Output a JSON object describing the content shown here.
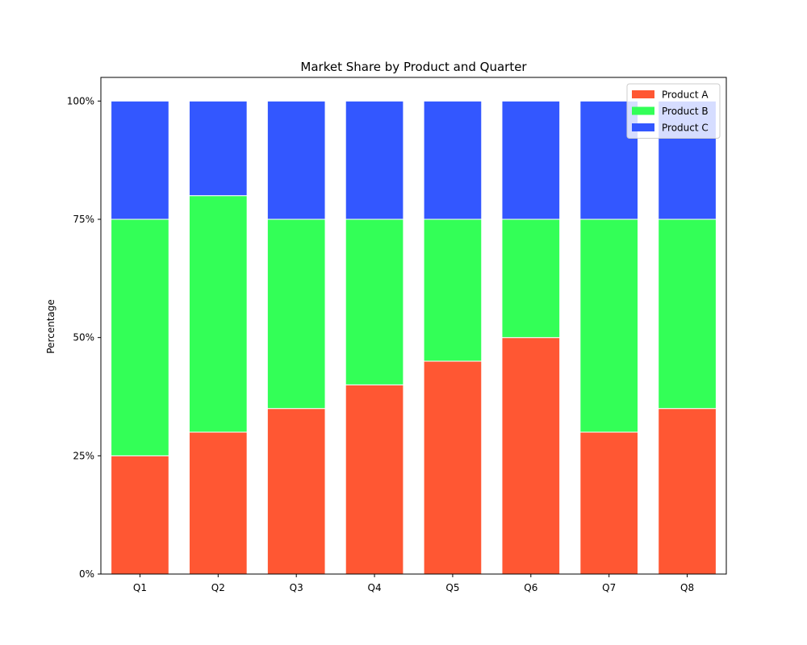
{
  "chart_data": {
    "type": "bar",
    "stacked": true,
    "title": "Market Share by Product and Quarter",
    "xlabel": "",
    "ylabel": "Percentage",
    "categories": [
      "Q1",
      "Q2",
      "Q3",
      "Q4",
      "Q5",
      "Q6",
      "Q7",
      "Q8"
    ],
    "series": [
      {
        "name": "Product A",
        "color": "#ff5733",
        "values": [
          25,
          30,
          35,
          40,
          45,
          50,
          30,
          35
        ]
      },
      {
        "name": "Product B",
        "color": "#33ff57",
        "values": [
          50,
          50,
          40,
          35,
          30,
          25,
          45,
          40
        ]
      },
      {
        "name": "Product C",
        "color": "#3357ff",
        "values": [
          25,
          20,
          25,
          25,
          25,
          25,
          25,
          25
        ]
      }
    ],
    "ylim": [
      0,
      105
    ],
    "yticks": [
      0,
      25,
      50,
      75,
      100
    ],
    "ytick_labels": [
      "0%",
      "25%",
      "50%",
      "75%",
      "100%"
    ],
    "grid": false,
    "legend_position": "top-right"
  }
}
